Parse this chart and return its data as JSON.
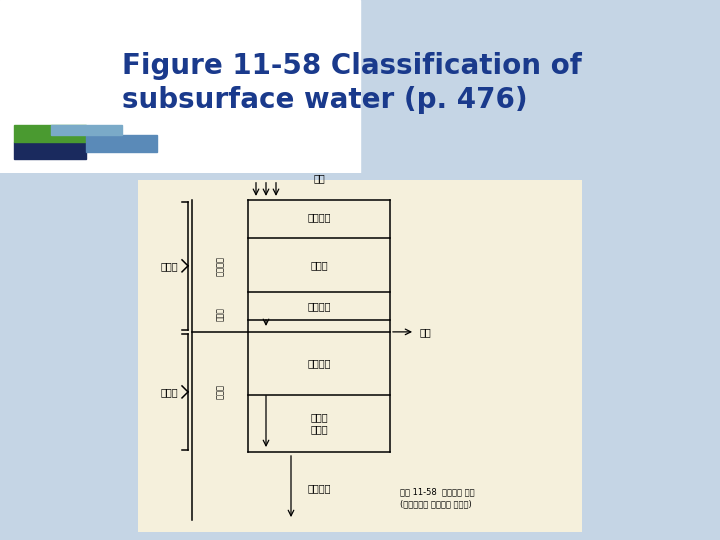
{
  "slide_bg": "#c5d5e5",
  "title_bg": "#e8ecf0",
  "title": "Figure 11-58 Classification of\nsubsurface water (p. 476)",
  "title_color": "#1a3a8c",
  "title_fontsize": 20,
  "diagram_bg": "#f5f0dc",
  "label_top": "지수",
  "label_soil": "토양수대",
  "label_inter": "중간대",
  "label_capillary": "모관수대",
  "label_water_table_right": "수위",
  "label_gw_zone": "지하수대",
  "label_phreatic": "불안정\n구뻑수",
  "label_combined": "결합수대",
  "label_vadose_left": "통기대",
  "label_saturation_left": "포화대",
  "label_vadose_vert": "통기대물",
  "label_gw_vert": "지하수",
  "label_saturation_small": "사면지",
  "caption": "그림 11-58  지하수의 분류\n(캘리포니아 농업기술 관리소)"
}
